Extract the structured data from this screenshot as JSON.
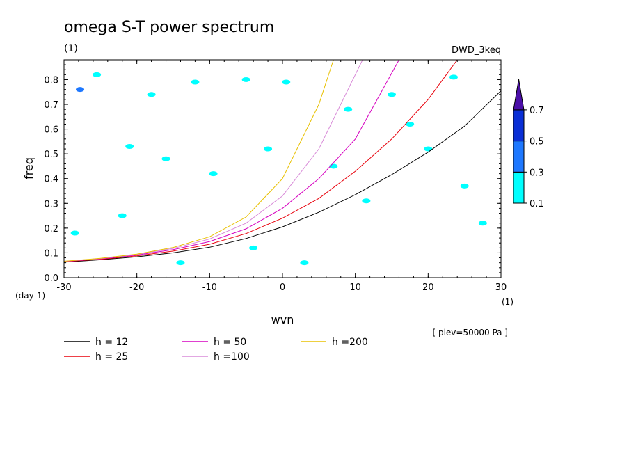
{
  "chart_data": {
    "type": "line",
    "title": "omega S-T power spectrum",
    "subtitle_units": "(1)",
    "dataset_label": "DWD_3keq",
    "xlabel": "wvn",
    "x_units": "(1)",
    "ylabel": "freq",
    "y_units": "(day-1)",
    "annotation": "[ plev=50000 Pa ]",
    "xlim": [
      -30,
      30
    ],
    "ylim": [
      0,
      0.88
    ],
    "x_ticks": [
      -30,
      -20,
      -10,
      0,
      10,
      20,
      30
    ],
    "y_ticks": [
      0.0,
      0.1,
      0.2,
      0.3,
      0.4,
      0.5,
      0.6,
      0.7,
      0.8
    ],
    "x_tick_labels": [
      "-30",
      "-20",
      "-10",
      "0",
      "10",
      "20",
      "30"
    ],
    "y_tick_labels": [
      "0.0",
      "0.1",
      "0.2",
      "0.3",
      "0.4",
      "0.5",
      "0.6",
      "0.7",
      "0.8"
    ],
    "grid": false,
    "colorbar": {
      "levels": [
        "0.1",
        "0.3",
        "0.5",
        "0.7"
      ],
      "colors": [
        "#00ffff",
        "#1e78ff",
        "#0a2fd6",
        "#4b0fa8"
      ]
    },
    "series": [
      {
        "name": "h = 12",
        "color": "#000000",
        "x": [
          -30,
          -25,
          -20,
          -15,
          -10,
          -5,
          0,
          5,
          10,
          15,
          20,
          25,
          30
        ],
        "y": [
          0.062,
          0.072,
          0.084,
          0.1,
          0.123,
          0.158,
          0.205,
          0.264,
          0.335,
          0.416,
          0.507,
          0.612,
          0.755
        ]
      },
      {
        "name": "h = 25",
        "color": "#e8000b",
        "x": [
          -30,
          -25,
          -20,
          -15,
          -10,
          -5,
          0,
          5,
          10,
          15,
          20,
          24
        ],
        "y": [
          0.064,
          0.074,
          0.088,
          0.107,
          0.135,
          0.178,
          0.24,
          0.32,
          0.43,
          0.56,
          0.72,
          0.88
        ]
      },
      {
        "name": "h = 50",
        "color": "#d600c0",
        "x": [
          -30,
          -25,
          -20,
          -15,
          -10,
          -5,
          0,
          5,
          10,
          16
        ],
        "y": [
          0.065,
          0.076,
          0.091,
          0.113,
          0.146,
          0.197,
          0.28,
          0.4,
          0.56,
          0.88
        ]
      },
      {
        "name": "h =100",
        "color": "#d88ad8",
        "x": [
          -30,
          -25,
          -20,
          -15,
          -10,
          -5,
          0,
          5,
          11
        ],
        "y": [
          0.066,
          0.077,
          0.093,
          0.118,
          0.156,
          0.22,
          0.33,
          0.52,
          0.88
        ]
      },
      {
        "name": "h =200",
        "color": "#e8c000",
        "x": [
          -30,
          -25,
          -20,
          -15,
          -10,
          -5,
          0,
          5,
          7
        ],
        "y": [
          0.066,
          0.078,
          0.095,
          0.122,
          0.165,
          0.245,
          0.4,
          0.7,
          0.88
        ]
      }
    ],
    "contour_patches": [
      {
        "x": -27.8,
        "y": 0.76,
        "level": 0.3
      },
      {
        "x": -28.5,
        "y": 0.18,
        "level": 0.1
      },
      {
        "x": -25.5,
        "y": 0.82,
        "level": 0.1
      },
      {
        "x": -22.0,
        "y": 0.25,
        "level": 0.1
      },
      {
        "x": -21.0,
        "y": 0.53,
        "level": 0.1
      },
      {
        "x": -18.0,
        "y": 0.74,
        "level": 0.1
      },
      {
        "x": -16.0,
        "y": 0.48,
        "level": 0.1
      },
      {
        "x": -12.0,
        "y": 0.79,
        "level": 0.1
      },
      {
        "x": -9.5,
        "y": 0.42,
        "level": 0.1
      },
      {
        "x": -5.0,
        "y": 0.8,
        "level": 0.1
      },
      {
        "x": -2.0,
        "y": 0.52,
        "level": 0.1
      },
      {
        "x": 0.5,
        "y": 0.79,
        "level": 0.1
      },
      {
        "x": 7.0,
        "y": 0.45,
        "level": 0.1
      },
      {
        "x": 9.0,
        "y": 0.68,
        "level": 0.1
      },
      {
        "x": 11.5,
        "y": 0.31,
        "level": 0.1
      },
      {
        "x": 15.0,
        "y": 0.74,
        "level": 0.1
      },
      {
        "x": 17.5,
        "y": 0.62,
        "level": 0.1
      },
      {
        "x": 20.0,
        "y": 0.52,
        "level": 0.1
      },
      {
        "x": 23.5,
        "y": 0.81,
        "level": 0.1
      },
      {
        "x": 25.0,
        "y": 0.37,
        "level": 0.1
      },
      {
        "x": 27.5,
        "y": 0.22,
        "level": 0.1
      },
      {
        "x": -4.0,
        "y": 0.12,
        "level": 0.1
      },
      {
        "x": 3.0,
        "y": 0.06,
        "level": 0.1
      },
      {
        "x": -14.0,
        "y": 0.06,
        "level": 0.1
      }
    ]
  }
}
